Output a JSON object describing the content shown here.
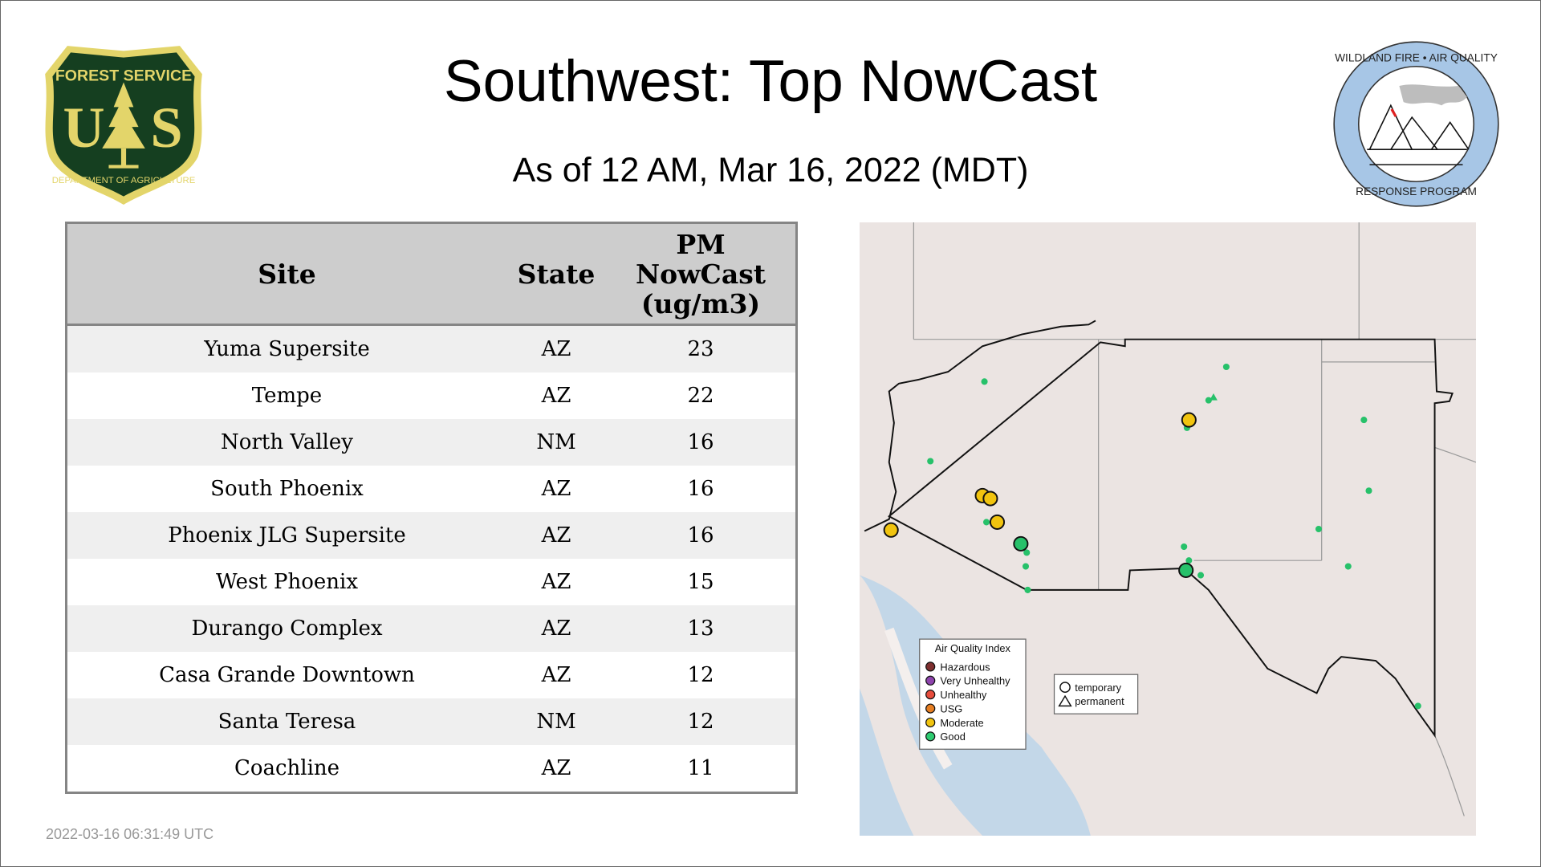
{
  "header": {
    "title": "Southwest: Top NowCast",
    "subtitle": "As of 12 AM, Mar 16, 2022 (MDT)"
  },
  "logos": {
    "left": {
      "name": "USDA Forest Service",
      "text_top": "FOREST SERVICE",
      "text_mid": "U S",
      "text_bottom": "DEPARTMENT OF AGRICULTURE"
    },
    "right": {
      "name": "Wildland Fire Air Quality Response Program",
      "text_top": "WILDLAND FIRE • AIR QUALITY",
      "text_bottom": "RESPONSE PROGRAM"
    }
  },
  "table": {
    "columns": [
      "Site",
      "State",
      "PM NowCast (ug/m3)"
    ],
    "col_pm_lines": [
      "PM",
      "NowCast",
      "(ug/m3)"
    ],
    "rows": [
      {
        "site": "Yuma Supersite",
        "state": "AZ",
        "value": "23"
      },
      {
        "site": "Tempe",
        "state": "AZ",
        "value": "22"
      },
      {
        "site": "North Valley",
        "state": "NM",
        "value": "16"
      },
      {
        "site": "South Phoenix",
        "state": "AZ",
        "value": "16"
      },
      {
        "site": "Phoenix JLG Supersite",
        "state": "AZ",
        "value": "16"
      },
      {
        "site": "West Phoenix",
        "state": "AZ",
        "value": "15"
      },
      {
        "site": "Durango Complex",
        "state": "AZ",
        "value": "13"
      },
      {
        "site": "Casa Grande Downtown",
        "state": "AZ",
        "value": "12"
      },
      {
        "site": "Santa Teresa",
        "state": "NM",
        "value": "12"
      },
      {
        "site": "Coachline",
        "state": "AZ",
        "value": "11"
      }
    ]
  },
  "map": {
    "aqi_legend": {
      "title": "Air Quality Index",
      "items": [
        {
          "label": "Hazardous",
          "color": "#7e2f2f"
        },
        {
          "label": "Very Unhealthy",
          "color": "#8e44ad"
        },
        {
          "label": "Unhealthy",
          "color": "#e74c3c"
        },
        {
          "label": "USG",
          "color": "#e67e22"
        },
        {
          "label": "Moderate",
          "color": "#f1c40f"
        },
        {
          "label": "Good",
          "color": "#2ecc71"
        }
      ]
    },
    "shape_legend": {
      "items": [
        "temporary",
        "permanent"
      ]
    },
    "colors": {
      "moderate": "#f1c40f",
      "good": "#27c16a",
      "land": "#ebe4e2",
      "water": "#c3d7e8"
    }
  },
  "timestamp": "2022-03-16 06:31:49 UTC"
}
